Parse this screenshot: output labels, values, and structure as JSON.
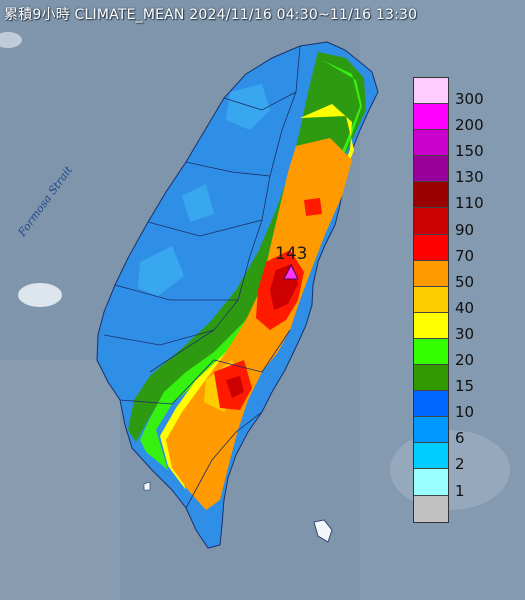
{
  "title": "累積9小時 CLIMATE_MEAN 2024/11/16 04:30~11/16 13:30",
  "strait_label": "Formosa Strait",
  "max_value": "143",
  "max_marker_icon": "triangle-marker-icon",
  "legend": {
    "classes": [
      {
        "label": "300",
        "color": "#ffccff"
      },
      {
        "label": "200",
        "color": "#ff00ff"
      },
      {
        "label": "150",
        "color": "#cc00cc"
      },
      {
        "label": "130",
        "color": "#990099"
      },
      {
        "label": "110",
        "color": "#990000"
      },
      {
        "label": "90",
        "color": "#cc0000"
      },
      {
        "label": "70",
        "color": "#ff0000"
      },
      {
        "label": "50",
        "color": "#ff9900"
      },
      {
        "label": "40",
        "color": "#ffcc00"
      },
      {
        "label": "30",
        "color": "#ffff00"
      },
      {
        "label": "20",
        "color": "#33ff00"
      },
      {
        "label": "15",
        "color": "#339900"
      },
      {
        "label": "10",
        "color": "#0066ff"
      },
      {
        "label": "6",
        "color": "#0099ff"
      },
      {
        "label": "2",
        "color": "#00ccff"
      },
      {
        "label": "1",
        "color": "#99ffff"
      },
      {
        "label": "",
        "color": "#c0c0c0"
      }
    ]
  }
}
